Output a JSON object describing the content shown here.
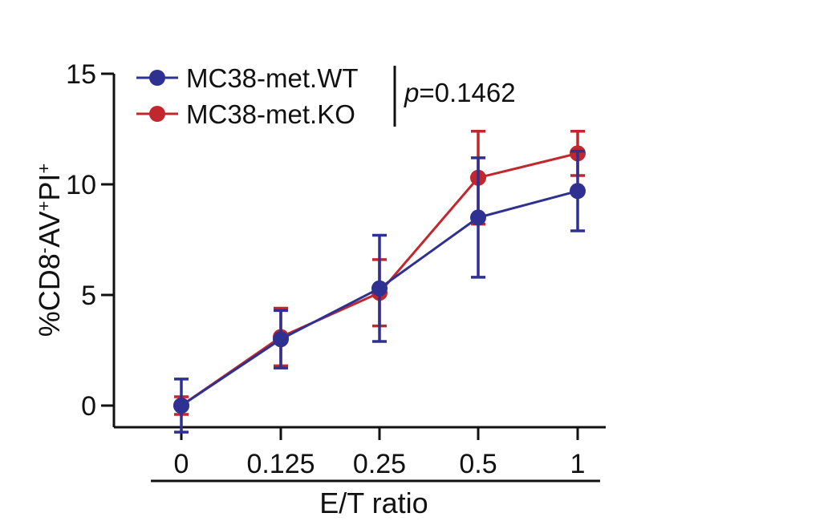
{
  "chart_data": {
    "type": "line",
    "title": "",
    "xlabel": "E/T ratio",
    "ylabel_parts": {
      "base": "%CD8",
      "sup1": "-",
      "mid": "AV",
      "sup2": "+",
      "mid2": "PI",
      "sup3": "+"
    },
    "categories": [
      "0",
      "0.125",
      "0.25",
      "0.5",
      "1"
    ],
    "ylim": [
      0,
      15
    ],
    "yticks": [
      "0",
      "5",
      "10",
      "15"
    ],
    "ytick_values": [
      0,
      5,
      10,
      15
    ],
    "series": [
      {
        "name": "MC38-met.WT",
        "color": "#2e3192",
        "values": [
          0.0,
          3.0,
          5.3,
          8.5,
          9.7
        ],
        "err": [
          1.2,
          1.3,
          2.4,
          2.7,
          1.8
        ]
      },
      {
        "name": "MC38-met.KO",
        "color": "#c1272d",
        "values": [
          0.0,
          3.1,
          5.1,
          10.3,
          11.4
        ],
        "err": [
          0.4,
          1.3,
          1.5,
          2.1,
          1.0
        ]
      }
    ],
    "annotation": {
      "italic": "p",
      "text": "=0.1462"
    },
    "legend": "top-left"
  }
}
